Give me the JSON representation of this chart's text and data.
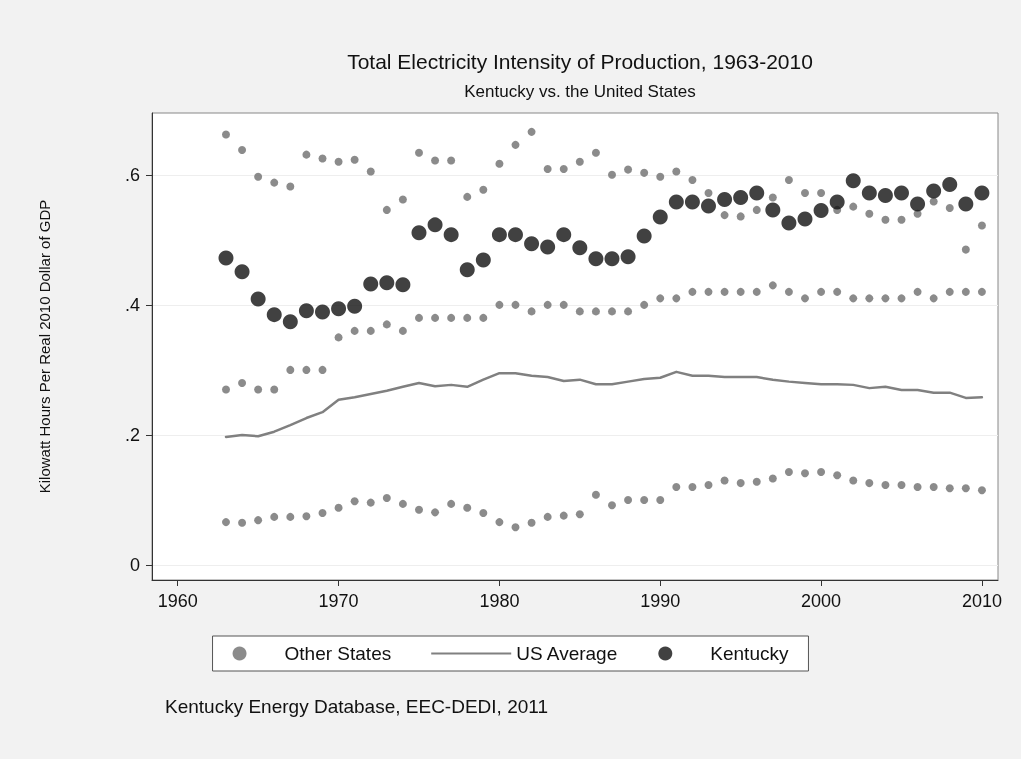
{
  "chart_data": {
    "type": "scatter",
    "title": "Total Electricity Intensity of Production, 1963-2010",
    "subtitle": "Kentucky vs. the United States",
    "ylabel": "Kilowatt Hours Per Real 2010 Dollar of GDP",
    "xlim": [
      1958.4,
      2011
    ],
    "xticks": [
      1960,
      1970,
      1980,
      1990,
      2000,
      2010
    ],
    "ylim": [
      -0.023,
      0.695
    ],
    "yticks": [
      {
        "value": 0,
        "label": "0"
      },
      {
        "value": 0.2,
        "label": ".2"
      },
      {
        "value": 0.4,
        "label": ".4"
      },
      {
        "value": 0.6,
        "label": ".6"
      }
    ],
    "grid": "y",
    "legend": "bottom",
    "marker": "circle",
    "annotations": [
      "Kentucky Energy Database, EEC-DEDI, 2011"
    ],
    "series": [
      {
        "name": "Other States",
        "color": "#6e6e6e",
        "x": [
          1963,
          1964,
          1965,
          1966,
          1967,
          1968,
          1969,
          1970,
          1971,
          1972,
          1973,
          1974,
          1975,
          1976,
          1977,
          1978,
          1979,
          1980,
          1981,
          1982,
          1983,
          1984,
          1985,
          1986,
          1987,
          1988,
          1989,
          1990,
          1991,
          1992,
          1993,
          1994,
          1995,
          1996,
          1997,
          1998,
          1999,
          2000,
          2001,
          2002,
          2003,
          2004,
          2005,
          2006,
          2007,
          2008,
          2009,
          2010,
          1963,
          1964,
          1965,
          1966,
          1967,
          1968,
          1969,
          1970,
          1971,
          1972,
          1973,
          1974,
          1975,
          1976,
          1977,
          1978,
          1979,
          1980,
          1981,
          1982,
          1983,
          1984,
          1985,
          1986,
          1987,
          1988,
          1989,
          1990,
          1991,
          1992,
          1993,
          1994,
          1995,
          1996,
          1997,
          1998,
          1999,
          2000,
          2001,
          2002,
          2003,
          2004,
          2005,
          2006,
          2007,
          2008,
          2009,
          2010,
          1963,
          1964,
          1965,
          1966,
          1967,
          1968,
          1969,
          1970,
          1971,
          1972,
          1973,
          1974,
          1975,
          1976,
          1977,
          1978,
          1979,
          1980,
          1981,
          1982,
          1983,
          1984,
          1985,
          1986,
          1987,
          1988,
          1989,
          1990,
          1991,
          1992,
          1993,
          1994,
          1995,
          1996,
          1997,
          1998,
          1999,
          2000,
          2001,
          2002,
          2003,
          2004,
          2005,
          2006,
          2007,
          2008,
          2009,
          2010
        ],
        "values": [
          0.662,
          0.638,
          0.597,
          0.588,
          0.582,
          0.631,
          0.625,
          0.62,
          0.623,
          0.605,
          0.546,
          0.562,
          0.634,
          0.622,
          0.622,
          0.566,
          0.577,
          0.617,
          0.646,
          0.666,
          0.609,
          0.609,
          0.62,
          0.634,
          0.6,
          0.608,
          0.603,
          0.597,
          0.605,
          0.592,
          0.572,
          0.538,
          0.536,
          0.546,
          0.565,
          0.592,
          0.572,
          0.572,
          0.546,
          0.551,
          0.54,
          0.531,
          0.531,
          0.54,
          0.559,
          0.549,
          0.485,
          0.522,
          0.27,
          0.28,
          0.27,
          0.27,
          0.3,
          0.3,
          0.3,
          0.35,
          0.36,
          0.36,
          0.37,
          0.36,
          0.38,
          0.38,
          0.38,
          0.38,
          0.38,
          0.4,
          0.4,
          0.39,
          0.4,
          0.4,
          0.39,
          0.39,
          0.39,
          0.39,
          0.4,
          0.41,
          0.41,
          0.42,
          0.42,
          0.42,
          0.42,
          0.42,
          0.43,
          0.42,
          0.41,
          0.42,
          0.42,
          0.41,
          0.41,
          0.41,
          0.41,
          0.42,
          0.41,
          0.42,
          0.42,
          0.42,
          0.066,
          0.065,
          0.069,
          0.074,
          0.074,
          0.075,
          0.08,
          0.088,
          0.098,
          0.096,
          0.103,
          0.094,
          0.085,
          0.081,
          0.094,
          0.088,
          0.08,
          0.066,
          0.058,
          0.065,
          0.074,
          0.076,
          0.078,
          0.108,
          0.092,
          0.1,
          0.1,
          0.1,
          0.12,
          0.12,
          0.123,
          0.13,
          0.126,
          0.128,
          0.133,
          0.143,
          0.141,
          0.143,
          0.138,
          0.13,
          0.126,
          0.123,
          0.123,
          0.12,
          0.12,
          0.118,
          0.118,
          0.115
        ]
      },
      {
        "name": "US Average",
        "type": "line",
        "color": "#808080",
        "marker": "none",
        "x": [
          1963,
          1964,
          1965,
          1966,
          1967,
          1968,
          1969,
          1970,
          1971,
          1972,
          1973,
          1974,
          1975,
          1976,
          1977,
          1978,
          1979,
          1980,
          1981,
          1982,
          1983,
          1984,
          1985,
          1986,
          1987,
          1988,
          1989,
          1990,
          1991,
          1992,
          1993,
          1994,
          1995,
          1996,
          1997,
          1998,
          1999,
          2000,
          2001,
          2002,
          2003,
          2004,
          2005,
          2006,
          2007,
          2008,
          2009,
          2010
        ],
        "values": [
          0.197,
          0.2,
          0.198,
          0.205,
          0.215,
          0.226,
          0.235,
          0.254,
          0.258,
          0.263,
          0.268,
          0.274,
          0.28,
          0.275,
          0.277,
          0.274,
          0.285,
          0.295,
          0.295,
          0.291,
          0.289,
          0.283,
          0.285,
          0.278,
          0.278,
          0.282,
          0.286,
          0.288,
          0.297,
          0.291,
          0.291,
          0.289,
          0.289,
          0.289,
          0.285,
          0.282,
          0.28,
          0.278,
          0.278,
          0.277,
          0.272,
          0.274,
          0.269,
          0.269,
          0.265,
          0.265,
          0.257,
          0.258
        ]
      },
      {
        "name": "Kentucky",
        "color": "#111111",
        "x": [
          1963,
          1964,
          1965,
          1966,
          1967,
          1968,
          1969,
          1970,
          1971,
          1972,
          1973,
          1974,
          1975,
          1976,
          1977,
          1978,
          1979,
          1980,
          1981,
          1982,
          1983,
          1984,
          1985,
          1986,
          1987,
          1988,
          1989,
          1990,
          1991,
          1992,
          1993,
          1994,
          1995,
          1996,
          1997,
          1998,
          1999,
          2000,
          2001,
          2002,
          2003,
          2004,
          2005,
          2006,
          2007,
          2008,
          2009,
          2010
        ],
        "values": [
          0.472,
          0.451,
          0.409,
          0.385,
          0.374,
          0.391,
          0.389,
          0.394,
          0.398,
          0.432,
          0.434,
          0.431,
          0.511,
          0.523,
          0.508,
          0.454,
          0.469,
          0.508,
          0.508,
          0.494,
          0.489,
          0.508,
          0.488,
          0.471,
          0.471,
          0.474,
          0.506,
          0.535,
          0.558,
          0.558,
          0.552,
          0.562,
          0.565,
          0.572,
          0.546,
          0.526,
          0.532,
          0.545,
          0.558,
          0.591,
          0.572,
          0.568,
          0.572,
          0.555,
          0.575,
          0.585,
          0.555,
          0.572
        ]
      }
    ]
  }
}
